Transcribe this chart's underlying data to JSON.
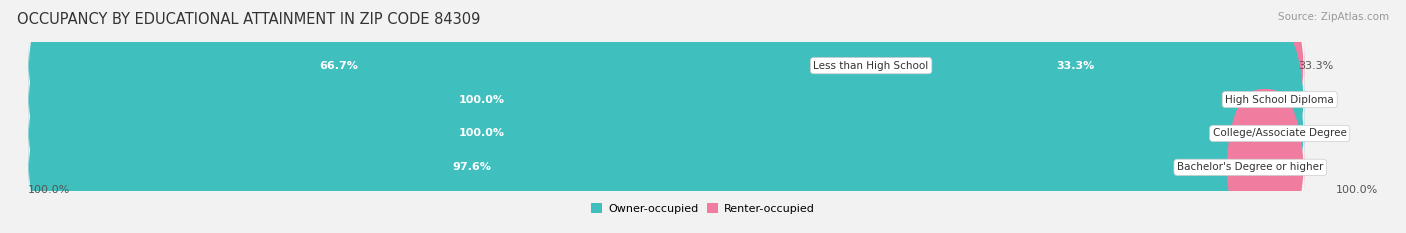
{
  "title": "OCCUPANCY BY EDUCATIONAL ATTAINMENT IN ZIP CODE 84309",
  "source": "Source: ZipAtlas.com",
  "categories": [
    "Less than High School",
    "High School Diploma",
    "College/Associate Degree",
    "Bachelor's Degree or higher"
  ],
  "owner_pct": [
    66.7,
    100.0,
    100.0,
    97.6
  ],
  "renter_pct": [
    33.3,
    0.0,
    0.0,
    2.4
  ],
  "owner_color": "#40bfbf",
  "renter_color": "#f07ca0",
  "bg_color": "#f2f2f2",
  "bar_bg_color": "#e0e0e0",
  "row_bg_even": "#ececec",
  "row_bg_odd": "#f8f8f8",
  "title_fontsize": 10.5,
  "source_fontsize": 7.5,
  "value_fontsize": 8,
  "cat_fontsize": 7.5,
  "bar_height": 0.62,
  "axis_label_left": "100.0%",
  "axis_label_right": "100.0%",
  "legend_owner": "Owner-occupied",
  "legend_renter": "Renter-occupied"
}
